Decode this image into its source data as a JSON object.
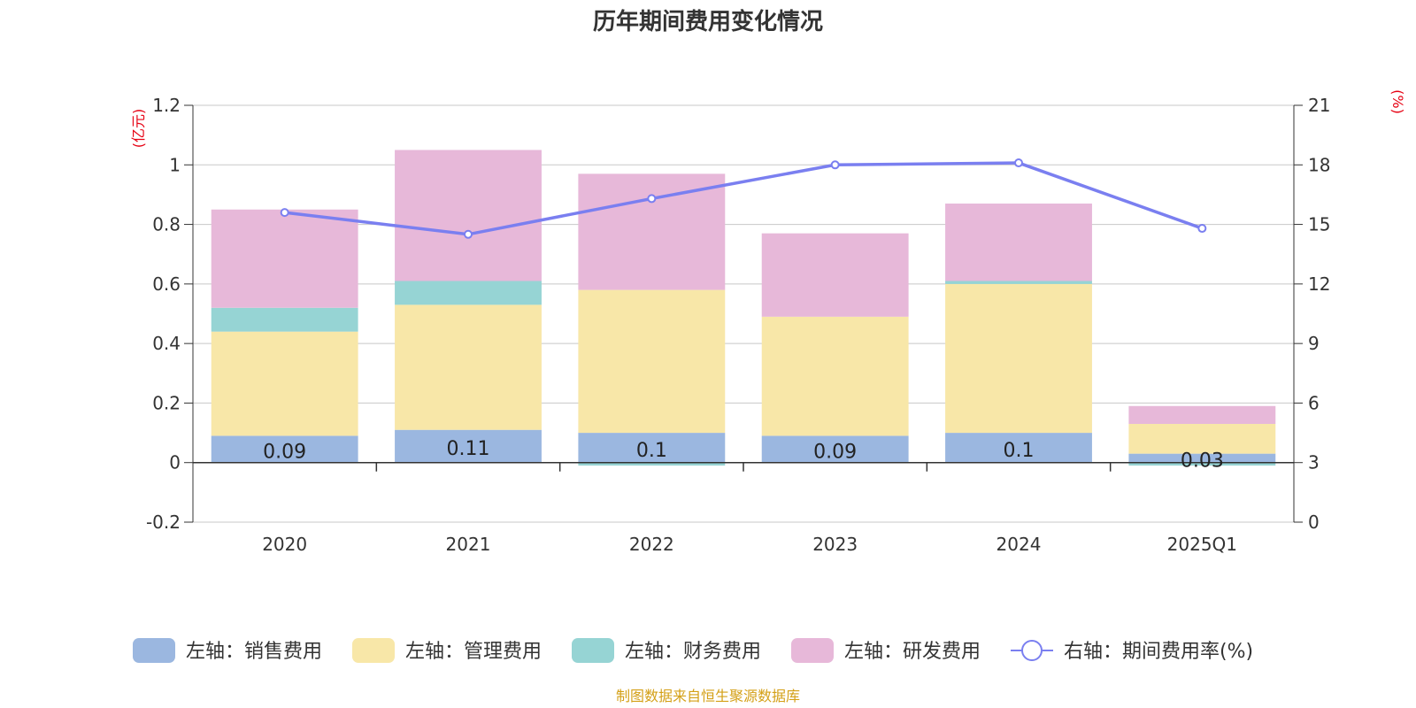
{
  "chart_data": {
    "type": "bar",
    "title": "历年期间费用变化情况",
    "categories": [
      "2020",
      "2021",
      "2022",
      "2023",
      "2024",
      "2025Q1"
    ],
    "left_axis": {
      "unit": "(亿元)",
      "ylim": [
        -0.2,
        1.2
      ],
      "ticks": [
        -0.2,
        0,
        0.2,
        0.4,
        0.6,
        0.8,
        1,
        1.2
      ],
      "tick_labels": [
        "-0.2",
        "0",
        "0.2",
        "0.4",
        "0.6",
        "0.8",
        "1",
        "1.2"
      ]
    },
    "right_axis": {
      "unit": "(%)",
      "ylim": [
        0,
        21
      ],
      "ticks": [
        0,
        3,
        6,
        9,
        12,
        15,
        18,
        21
      ],
      "tick_labels": [
        "0",
        "3",
        "6",
        "9",
        "12",
        "15",
        "18",
        "21"
      ]
    },
    "series": [
      {
        "name": "左轴：销售费用",
        "type": "bar",
        "axis": "left",
        "color": "#9bb7e0",
        "values": [
          0.09,
          0.11,
          0.1,
          0.09,
          0.1,
          0.03
        ]
      },
      {
        "name": "左轴：管理费用",
        "type": "bar",
        "axis": "left",
        "color": "#f8e7a8",
        "values": [
          0.35,
          0.42,
          0.48,
          0.4,
          0.5,
          0.1
        ]
      },
      {
        "name": "左轴：财务费用",
        "type": "bar",
        "axis": "left",
        "color": "#96d4d4",
        "values": [
          0.08,
          0.08,
          -0.01,
          0,
          0.01,
          -0.01
        ]
      },
      {
        "name": "左轴：研发费用",
        "type": "bar",
        "axis": "left",
        "color": "#e7b8d9",
        "values": [
          0.33,
          0.44,
          0.39,
          0.28,
          0.26,
          0.06
        ]
      },
      {
        "name": "右轴：期间费用率(%)",
        "type": "line",
        "axis": "right",
        "color": "#7a7ff0",
        "values": [
          15.6,
          14.5,
          16.3,
          18.0,
          18.1,
          14.8
        ]
      }
    ],
    "data_labels": [
      "0.09",
      "0.11",
      "0.1",
      "0.09",
      "0.1",
      "0.03"
    ],
    "legend_position": "bottom"
  },
  "source_text": "制图数据来自恒生聚源数据库"
}
